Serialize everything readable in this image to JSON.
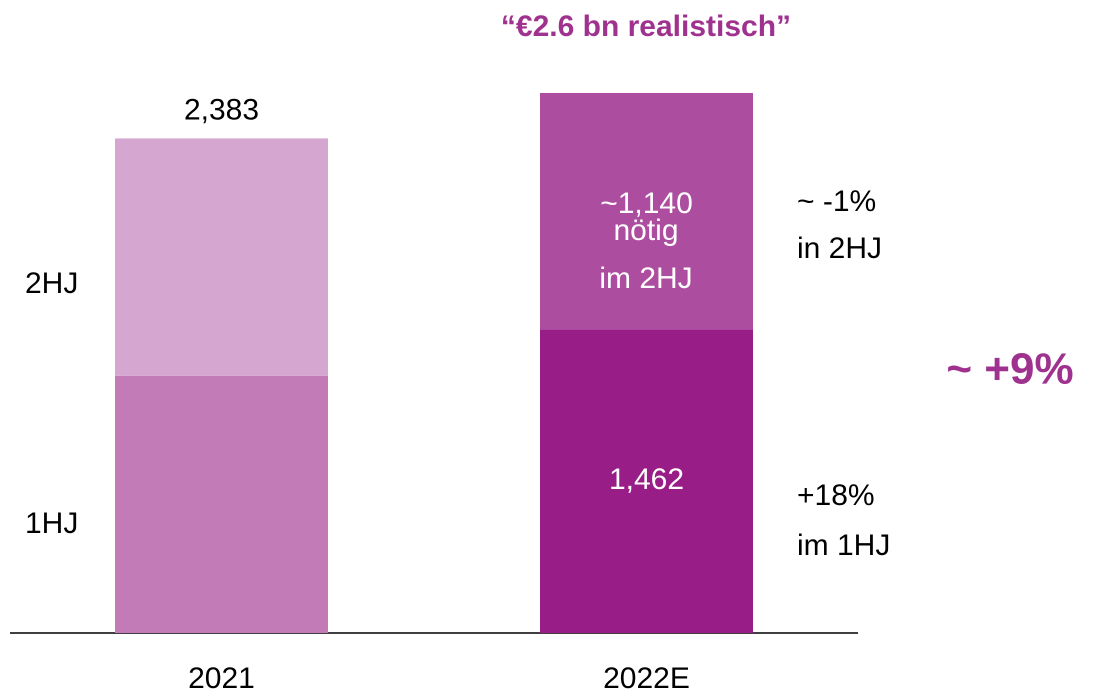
{
  "chart_data": {
    "type": "stacked_bar",
    "title": "“€2.6 bn realistisch”",
    "categories": [
      "2021",
      "2022E"
    ],
    "series": [
      {
        "name": "1HJ",
        "colors": [
          "#c27bb6",
          "#981d87"
        ],
        "values": [
          1239,
          1462
        ],
        "value_labels": [
          null,
          "1,462"
        ]
      },
      {
        "name": "2HJ",
        "colors": [
          "#d5a6cf",
          "#ad4da0"
        ],
        "values": [
          1144,
          1140
        ],
        "value_labels": [
          null,
          "~1,140"
        ]
      }
    ],
    "totals": [
      2383,
      null
    ],
    "total_labels": [
      "2,383",
      null
    ],
    "annotations": [
      "nötig",
      "im 2HJ",
      "~ -1%",
      "in 2HJ",
      "+18%",
      "im 1HJ",
      "~ +9%"
    ],
    "ylim": [
      0,
      3050
    ]
  }
}
